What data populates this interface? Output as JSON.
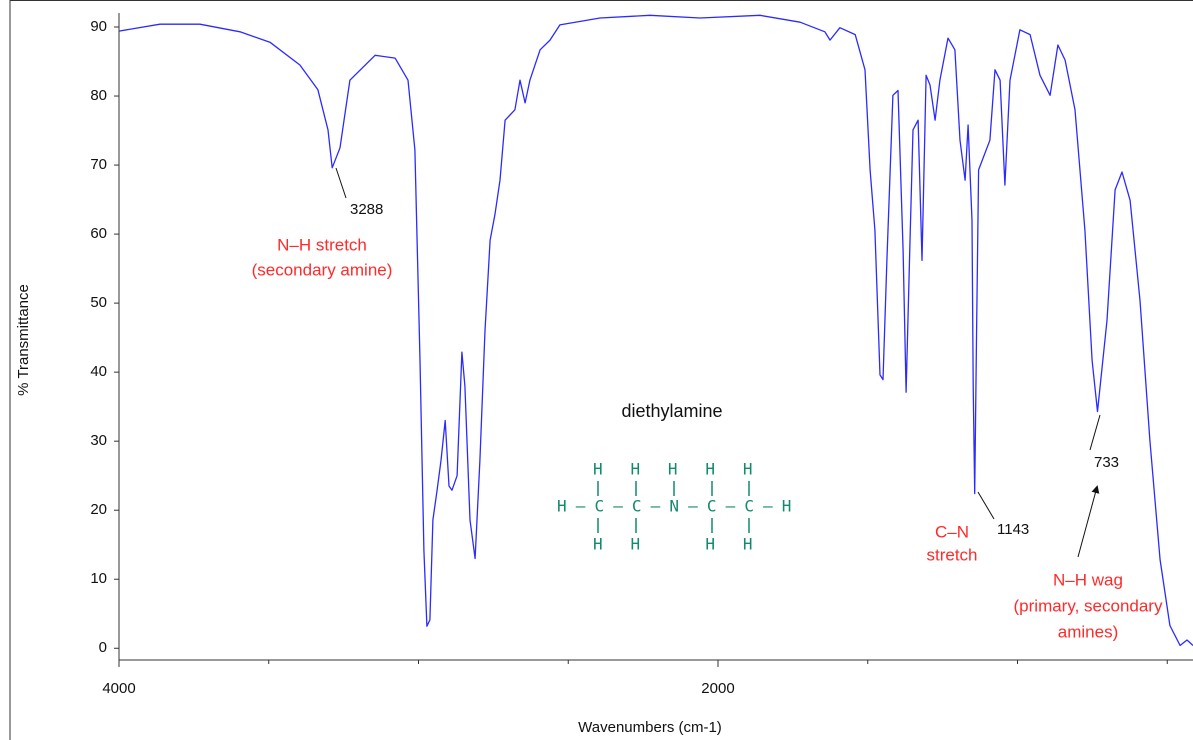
{
  "chart_data": {
    "type": "line",
    "xlabel": "Wavenumbers (cm-1)",
    "ylabel": "% Transmittance",
    "color": "#2b2bff",
    "xlim": [
      4000,
      414
    ],
    "ylim": [
      -1.7,
      92
    ],
    "xticks": [
      4000,
      2000
    ],
    "xminorticks": [
      3500,
      3000,
      2500,
      1500,
      1000,
      500
    ],
    "yticks": [
      0,
      10,
      20,
      30,
      40,
      50,
      60,
      70,
      80,
      90
    ],
    "x": [
      4000,
      3863,
      3730,
      3596,
      3496,
      3396,
      3336,
      3302,
      3288,
      3262,
      3229,
      3145,
      3078,
      3035,
      3012,
      2995,
      2982,
      2972,
      2962,
      2952,
      2938,
      2925,
      2911,
      2898,
      2888,
      2871,
      2855,
      2845,
      2828,
      2811,
      2795,
      2778,
      2761,
      2745,
      2728,
      2711,
      2678,
      2661,
      2644,
      2628,
      2594,
      2561,
      2528,
      2394,
      2227,
      2060,
      1860,
      1726,
      1643,
      1626,
      1593,
      1542,
      1509,
      1492,
      1476,
      1459,
      1449,
      1436,
      1416,
      1399,
      1382,
      1372,
      1359,
      1349,
      1332,
      1319,
      1305,
      1292,
      1275,
      1259,
      1232,
      1209,
      1192,
      1175,
      1165,
      1152,
      1148,
      1143,
      1137,
      1130,
      1092,
      1075,
      1058,
      1042,
      1025,
      992,
      958,
      925,
      891,
      865,
      841,
      808,
      775,
      751,
      733,
      701,
      674,
      651,
      624,
      591,
      558,
      524,
      491,
      457,
      434,
      414
    ],
    "values": [
      89.4,
      90.4,
      90.4,
      89.3,
      87.8,
      84.5,
      80.9,
      75.1,
      69.6,
      72.5,
      82.3,
      85.9,
      85.5,
      82.3,
      72.2,
      41.7,
      14.2,
      3.2,
      4.1,
      18.6,
      22.9,
      27.2,
      33,
      23.5,
      22.9,
      25,
      42.9,
      38,
      18.6,
      13,
      27.2,
      46,
      59.1,
      62.8,
      67.8,
      76.5,
      78,
      82.3,
      79,
      82.3,
      86.7,
      88.1,
      90.3,
      91.3,
      91.7,
      91.3,
      91.7,
      90.7,
      89.3,
      88.1,
      89.9,
      88.9,
      83.8,
      69.3,
      60.6,
      39.6,
      38.9,
      56.2,
      80.1,
      80.8,
      57.6,
      37.1,
      59,
      75.1,
      76.5,
      56.2,
      83,
      81.6,
      76.5,
      82.3,
      88.4,
      86.7,
      73.6,
      67.8,
      75.8,
      62,
      38,
      22.4,
      45,
      69.3,
      73.6,
      83.8,
      82.3,
      67.1,
      82.3,
      89.6,
      88.9,
      83,
      80.1,
      87.4,
      85.2,
      78,
      60.6,
      41.7,
      34.3,
      47.5,
      66.4,
      69,
      64.9,
      50.4,
      30.1,
      12.8,
      3.3,
      0.4,
      1.2,
      0.4
    ],
    "compound": "diethylamine",
    "structure": [
      "H H H H H",
      "H–C–C–N–C–C–H",
      "H H   H H"
    ],
    "annotations": [
      {
        "lines": [
          "3288"
        ]
      },
      {
        "lines": [
          "N–H stretch",
          "(secondary amine)"
        ]
      },
      {
        "lines": [
          "1143"
        ]
      },
      {
        "lines": [
          "C–N",
          "stretch"
        ]
      },
      {
        "lines": [
          "733"
        ]
      },
      {
        "lines": [
          "N–H wag",
          "(primary, secondary",
          "amines)"
        ]
      }
    ]
  }
}
